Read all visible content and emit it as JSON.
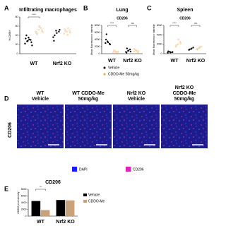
{
  "chart_data": [
    {
      "type": "strip",
      "panel": "A",
      "title": "Infiltrating macrophages",
      "ylabel": "% CD68+",
      "categories": [
        "WT",
        "Nrf2 KO"
      ],
      "series": [
        {
          "color": "#000000",
          "values": [
            [
              22,
              28,
              30,
              33,
              35,
              25,
              40,
              31,
              18,
              27
            ],
            [
              36,
              50,
              48,
              28,
              45,
              52,
              40
            ]
          ]
        },
        {
          "color": "#f0a040",
          "values": [
            [
              48,
              52,
              55,
              45,
              60,
              50,
              42,
              57,
              47
            ],
            [
              44,
              48,
              50,
              53,
              41,
              46,
              49,
              55
            ]
          ]
        }
      ],
      "ylim": [
        0,
        80
      ],
      "yticks": [
        0,
        20,
        40,
        60,
        80
      ],
      "annotations": [
        "****"
      ]
    },
    {
      "type": "strip",
      "panel": "B",
      "title": "Lung",
      "subtitle": "CD206",
      "ylabel": "Mean fluorescence intensity",
      "categories": [
        "WT",
        "Nrf2 KO"
      ],
      "series": [
        {
          "name": "Vehicle",
          "color": "#000000",
          "values": [
            [
              3000,
              3500,
              2800,
              4000,
              3200,
              2600,
              5500
            ],
            [
              500,
              800,
              1200,
              300,
              900,
              600,
              1500
            ]
          ]
        },
        {
          "name": "CDDO-Me 50mg/kg",
          "color": "#f0a040",
          "values": [
            [
              400,
              700,
              300,
              900,
              500,
              600
            ],
            [
              600,
              1000,
              400,
              1300,
              800,
              700
            ]
          ]
        }
      ],
      "ylim": [
        0,
        8000
      ],
      "yticks": [
        0,
        2000,
        4000,
        6000,
        8000
      ],
      "annotations": [
        "****",
        "ns"
      ]
    },
    {
      "type": "strip",
      "panel": "C",
      "title": "Spleen",
      "subtitle": "CD206",
      "ylabel": "Mean fluorescence intensity",
      "categories": [
        "WT",
        "Nrf2 KO"
      ],
      "series": [
        {
          "color": "#000000",
          "values": [
            [
              200,
              400,
              300,
              500,
              250,
              350
            ],
            [
              800,
              1000,
              1300,
              900,
              1100
            ]
          ]
        },
        {
          "color": "#f0a040",
          "values": [
            [
              1500,
              2000,
              2500,
              1800,
              3000,
              2200
            ],
            [
              900,
              1200,
              1500,
              1000,
              1400
            ]
          ]
        }
      ],
      "ylim": [
        0,
        6000
      ],
      "yticks": [
        0,
        2000,
        4000,
        6000
      ],
      "annotations": [
        "****",
        "ns"
      ]
    },
    {
      "type": "bar",
      "panel": "E",
      "title": "CD206",
      "ylabel": "CD206 pixel density",
      "categories": [
        "WT",
        "Nrf2 KO"
      ],
      "series": [
        {
          "name": "Vehicle",
          "color": "#000000",
          "values": [
            4500,
            4800
          ]
        },
        {
          "name": "CDDO-Me",
          "color": "#c9a27c",
          "values": [
            1800,
            4700
          ]
        }
      ],
      "ylim": [
        0,
        8000
      ],
      "yticks": [
        0,
        2000,
        4000,
        6000,
        8000
      ],
      "annotations": [
        "**"
      ]
    }
  ],
  "images": {
    "panel": "D",
    "row_label": "CD206",
    "columns": [
      [
        "WT",
        "Vehicle"
      ],
      [
        "WT CDDO-Me",
        "50mg/kg"
      ],
      [
        "Nrf2 KO",
        "Vehicle"
      ],
      [
        "Nrf2 KO",
        "CDDO-Me",
        "50mg/kg"
      ]
    ],
    "legend": [
      "DAPI",
      "CD206"
    ]
  }
}
